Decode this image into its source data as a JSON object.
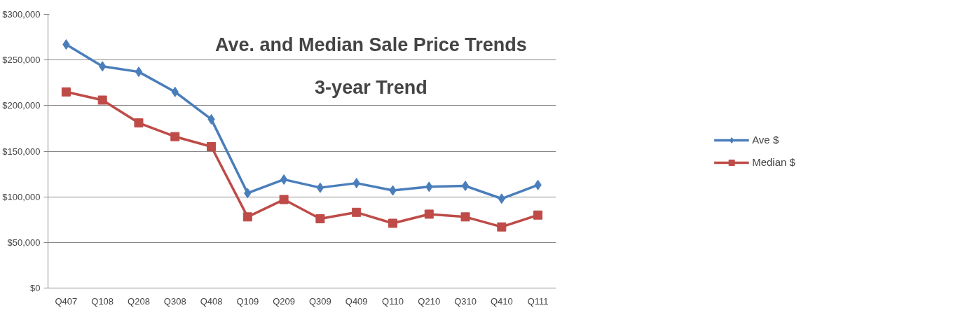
{
  "chart_data": {
    "type": "line",
    "title": "Ave. and Median Sale Price Trends",
    "subtitle": "3-year Trend",
    "categories": [
      "Q407",
      "Q108",
      "Q208",
      "Q308",
      "Q408",
      "Q109",
      "Q209",
      "Q309",
      "Q409",
      "Q110",
      "Q210",
      "Q310",
      "Q410",
      "Q111"
    ],
    "series": [
      {
        "name": "Ave $",
        "color": "#4a7ebb",
        "marker": "diamond",
        "values": [
          267000,
          243000,
          237000,
          215000,
          185000,
          104000,
          119000,
          110000,
          115000,
          107000,
          111000,
          112000,
          98000,
          113000
        ]
      },
      {
        "name": "Median $",
        "color": "#be4b48",
        "marker": "square",
        "values": [
          215000,
          206000,
          181000,
          166000,
          155000,
          78000,
          97000,
          76000,
          83000,
          71000,
          81000,
          78000,
          67000,
          80000
        ]
      }
    ],
    "ylim": [
      0,
      300000
    ],
    "yticks": [
      {
        "value": 0,
        "label": "$0"
      },
      {
        "value": 50000,
        "label": "$50,000"
      },
      {
        "value": 100000,
        "label": "$100,000"
      },
      {
        "value": 150000,
        "label": "$150,000"
      },
      {
        "value": 200000,
        "label": "$200,000"
      },
      {
        "value": 250000,
        "label": "$250,000"
      },
      {
        "value": 300000,
        "label": "$300,000"
      }
    ],
    "grid": "y",
    "legend": "right"
  }
}
